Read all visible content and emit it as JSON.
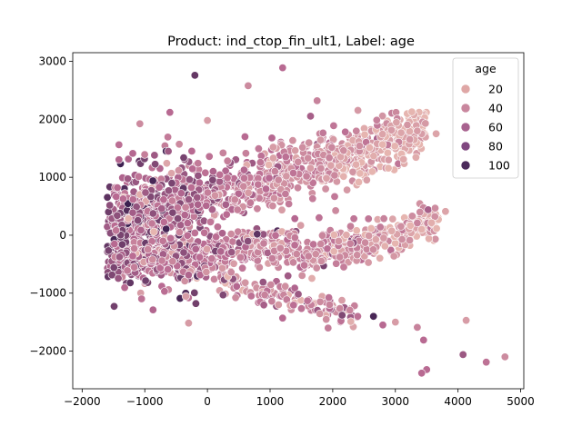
{
  "chart_data": {
    "type": "scatter",
    "title": "Product: ind_ctop_fin_ult1, Label: age",
    "xlabel": "",
    "ylabel": "",
    "xlim": [
      -2150,
      5050
    ],
    "ylim": [
      -2650,
      3150
    ],
    "xticks": [
      -2000,
      -1000,
      0,
      1000,
      2000,
      3000,
      4000,
      5000
    ],
    "yticks": [
      -2000,
      -1000,
      0,
      1000,
      2000,
      3000
    ],
    "xtick_labels": [
      "−2000",
      "−1000",
      "0",
      "1000",
      "2000",
      "3000",
      "4000",
      "5000"
    ],
    "ytick_labels": [
      "−2000",
      "−1000",
      "0",
      "1000",
      "2000",
      "3000"
    ],
    "grid": false,
    "hue": "age",
    "colormap": {
      "low": "#e6b5b0",
      "mid": "#b86a92",
      "high": "#3b1f4f"
    },
    "legend": {
      "title": "age",
      "placement": "upper-right",
      "entries": [
        {
          "label": "20",
          "color": "#dfa7a6"
        },
        {
          "label": "40",
          "color": "#c9879e"
        },
        {
          "label": "60",
          "color": "#a8628f"
        },
        {
          "label": "80",
          "color": "#804880"
        },
        {
          "label": "100",
          "color": "#4b2a5b"
        }
      ]
    },
    "cloud_points": 2400,
    "points": [
      {
        "x": -200,
        "y": 2760,
        "age": 90
      },
      {
        "x": 650,
        "y": 2580,
        "age": 40
      },
      {
        "x": 1200,
        "y": 2890,
        "age": 60
      },
      {
        "x": 1750,
        "y": 2320,
        "age": 45
      },
      {
        "x": 0,
        "y": 1980,
        "age": 30
      },
      {
        "x": -600,
        "y": 2120,
        "age": 60
      },
      {
        "x": 3800,
        "y": 410,
        "age": 25
      },
      {
        "x": 3350,
        "y": 1800,
        "age": 30
      },
      {
        "x": 3650,
        "y": 1750,
        "age": 25
      },
      {
        "x": 4750,
        "y": -2100,
        "age": 40
      },
      {
        "x": 4450,
        "y": -2190,
        "age": 55
      },
      {
        "x": 4080,
        "y": -2060,
        "age": 70
      },
      {
        "x": 4130,
        "y": -1470,
        "age": 30
      },
      {
        "x": 3500,
        "y": -2320,
        "age": 60
      },
      {
        "x": 3420,
        "y": -2380,
        "age": 60
      },
      {
        "x": 3450,
        "y": -1810,
        "age": 60
      },
      {
        "x": 3000,
        "y": -1500,
        "age": 30
      },
      {
        "x": 3350,
        "y": -1590,
        "age": 45
      },
      {
        "x": 2800,
        "y": -1550,
        "age": 60
      },
      {
        "x": 2650,
        "y": -1400,
        "age": 100
      },
      {
        "x": 2400,
        "y": -1400,
        "age": 55
      },
      {
        "x": 2150,
        "y": -1380,
        "age": 80
      },
      {
        "x": 1200,
        "y": -1430,
        "age": 60
      },
      {
        "x": 1950,
        "y": -1200,
        "age": 45
      },
      {
        "x": 1800,
        "y": -1150,
        "age": 40
      },
      {
        "x": 250,
        "y": -1030,
        "age": 80
      },
      {
        "x": 450,
        "y": -1080,
        "age": 40
      },
      {
        "x": 700,
        "y": -1050,
        "age": 55
      },
      {
        "x": 1100,
        "y": 1500,
        "age": 30
      },
      {
        "x": 1050,
        "y": 1520,
        "age": 30
      },
      {
        "x": 1400,
        "y": 1460,
        "age": 30
      },
      {
        "x": -250,
        "y": 1450,
        "age": 60
      },
      {
        "x": -450,
        "y": 1570,
        "age": 40
      },
      {
        "x": 600,
        "y": 1700,
        "age": 60
      },
      {
        "x": 250,
        "y": 1420,
        "age": 45
      }
    ]
  }
}
